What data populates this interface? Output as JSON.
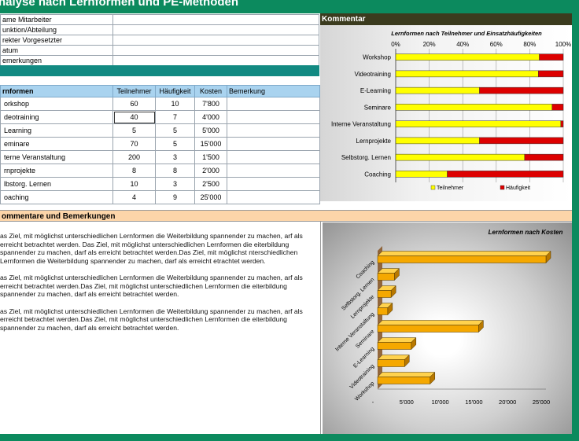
{
  "title": "nalyse nach Lernformen und PE-Methoden",
  "form": {
    "rows": [
      "ame Mitarbeiter",
      "unktion/Abteilung",
      "rekter Vorgesetzter",
      "atum",
      "emerkungen"
    ]
  },
  "table": {
    "headers": [
      "rnformen",
      "Teilnehmer",
      "Häufigkeit",
      "Kosten",
      "Bemerkung"
    ],
    "rows": [
      {
        "name": "orkshop",
        "teilnehmer": "60",
        "haeufigkeit": "10",
        "kosten": "7'800"
      },
      {
        "name": "deotraining",
        "teilnehmer": "40",
        "haeufigkeit": "7",
        "kosten": "4'000"
      },
      {
        "name": "Learning",
        "teilnehmer": "5",
        "haeufigkeit": "5",
        "kosten": "5'000"
      },
      {
        "name": "eminare",
        "teilnehmer": "70",
        "haeufigkeit": "5",
        "kosten": "15'000"
      },
      {
        "name": "terne Veranstaltung",
        "teilnehmer": "200",
        "haeufigkeit": "3",
        "kosten": "1'500"
      },
      {
        "name": "rnprojekte",
        "teilnehmer": "8",
        "haeufigkeit": "8",
        "kosten": "2'000"
      },
      {
        "name": "lbstorg. Lernen",
        "teilnehmer": "10",
        "haeufigkeit": "3",
        "kosten": "2'500"
      },
      {
        "name": "oaching",
        "teilnehmer": "4",
        "haeufigkeit": "9",
        "kosten": "25'000"
      }
    ]
  },
  "kommentar": {
    "label": "Kommentar"
  },
  "section2": {
    "header": "ommentare und Bemerkungen",
    "paragraphs": [
      "as Ziel, mit möglichst unterschiedlichen Lernformen die Weiterbildung spannender zu machen, arf als erreicht betrachtet werden. Das Ziel, mit möglichst unterschiedlichen Lernformen die eiterbildung spannender zu machen, darf als erreicht betrachtet werden.Das Ziel, mit möglichst nterschiedlichen Lernformen die Weiterbildung spannender zu machen, darf als erreicht etrachtet werden.",
      "as Ziel, mit möglichst unterschiedlichen Lernformen die Weiterbildung spannender zu machen, arf als erreicht betrachtet werden.Das Ziel, mit möglichst unterschiedlichen Lernformen die eiterbildung spannender zu machen, darf als erreicht betrachtet werden.",
      "as Ziel, mit möglichst unterschiedlichen Lernformen die Weiterbildung spannender zu machen, arf als erreicht betrachtet werden.Das Ziel, mit möglichst unterschiedlichen Lernformen die eiterbildung spannender zu machen, darf als erreicht betrachtet werden."
    ]
  },
  "chart_data": [
    {
      "type": "bar",
      "orientation": "horizontal",
      "stacked": "100%",
      "title": "Lernformen nach Teilnehmer und Einsatzhäufigkeiten",
      "categories": [
        "Workshop",
        "Videotraining",
        "E-Learning",
        "Seminare",
        "Interne Veranstaltung",
        "Lernprojekte",
        "Selbstorg. Lernen",
        "Coaching"
      ],
      "series": [
        {
          "name": "Teilnehmer",
          "values": [
            60,
            40,
            5,
            70,
            200,
            8,
            10,
            4
          ],
          "color": "#ffff00"
        },
        {
          "name": "Häufigkeit",
          "values": [
            10,
            7,
            5,
            5,
            3,
            8,
            3,
            9
          ],
          "color": "#dd0000"
        }
      ],
      "x_ticks": [
        "0%",
        "20%",
        "40%",
        "60%",
        "80%",
        "100%"
      ],
      "xlim": [
        0,
        100
      ],
      "legend": "bottom",
      "grid": true
    },
    {
      "type": "bar",
      "orientation": "horizontal",
      "style": "3d",
      "title": "Lernformen nach Kosten",
      "categories": [
        "Coaching",
        "Selbstorg. Lernen",
        "Lernprojekte",
        "Interne Veranstaltung",
        "Seminare",
        "E-Learning",
        "Videotraining",
        "Workshop"
      ],
      "values": [
        25000,
        2500,
        2000,
        1500,
        15000,
        5000,
        4000,
        7800
      ],
      "x_ticks": [
        "-",
        "5'000",
        "10'000",
        "15'000",
        "20'000",
        "25'000"
      ],
      "xlim": [
        0,
        25000
      ],
      "color": "#f5a800"
    }
  ]
}
